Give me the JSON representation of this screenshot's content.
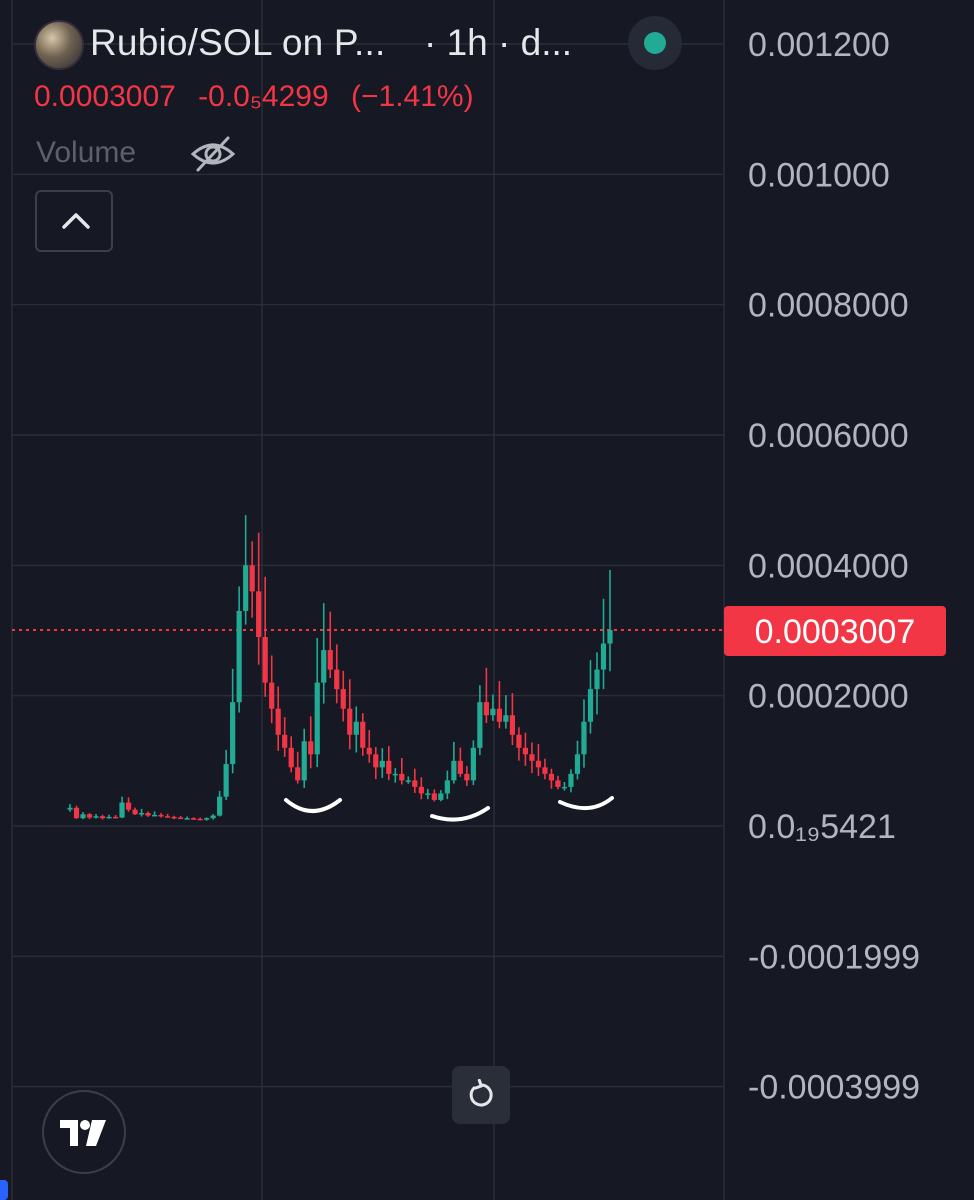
{
  "header": {
    "title": "Rubio/SOL on P...",
    "interval": "· 1h · d...",
    "status": "live"
  },
  "quote": {
    "price": "0.0003007",
    "change": "-0.0₅4299",
    "change_percent": "(−1.41%)"
  },
  "volume": {
    "label": "Volume",
    "icon": "eye-off-icon"
  },
  "colors": {
    "background": "#161823",
    "up": "#22ab94",
    "down": "#f23645",
    "price_line": "#f23645",
    "grid": "#2a2e39"
  },
  "chart_data": {
    "type": "candlestick",
    "y_tick_labels": [
      "0.001200",
      "0.001000",
      "0.0008000",
      "0.0006000",
      "0.0004000",
      "0.0002000",
      "0.0₁₉5421",
      "-0.0001999",
      "-0.0003999"
    ],
    "y_ticks": [
      0.0012,
      0.001,
      0.0008,
      0.0006,
      0.0004,
      0.0002,
      0.0,
      -0.0002,
      -0.0004
    ],
    "ylim": [
      -0.00045,
      0.00126
    ],
    "last_price": 0.0003007,
    "last_price_label": "0.0003007",
    "grid": true,
    "approx_close_series": [
      2.8e-05,
      1.2e-05,
      1.8e-05,
      1.3e-05,
      1.5e-05,
      1.2e-05,
      1.4e-05,
      1.3e-05,
      3.6e-05,
      2.5e-05,
      1.8e-05,
      2e-05,
      1.6e-05,
      1.7e-05,
      1.5e-05,
      1.4e-05,
      1.3e-05,
      1.2e-05,
      1.2e-05,
      1.1e-05,
      1e-05,
      1.2e-05,
      1.6e-05,
      4.5e-05,
      9.5e-05,
      0.00019,
      0.00033,
      0.0004,
      0.00036,
      0.00029,
      0.00022,
      0.00018,
      0.00014,
      0.00012,
      9e-05,
      7e-05,
      0.00013,
      0.00011,
      0.00022,
      0.00027,
      0.00024,
      0.00021,
      0.00018,
      0.00014,
      0.00016,
      0.00012,
      0.00011,
      9e-05,
      0.0001,
      8e-05,
      8e-05,
      7e-05,
      7e-05,
      6e-05,
      5e-05,
      5e-05,
      4e-05,
      5e-05,
      7e-05,
      0.0001,
      8e-05,
      7e-05,
      0.00012,
      0.00019,
      0.00017,
      0.00018,
      0.00016,
      0.00017,
      0.00014,
      0.00012,
      0.00011,
      0.0001,
      9e-05,
      8e-05,
      7e-05,
      6e-05,
      6e-05,
      8e-05,
      0.00011,
      0.00016,
      0.00021,
      0.00024,
      0.00028,
      0.0003007
    ]
  },
  "controls": {
    "collapse_icon": "chevron-up-icon",
    "reset_icon": "rotate-ccw-icon",
    "logo_icon": "tradingview-logo-icon"
  }
}
